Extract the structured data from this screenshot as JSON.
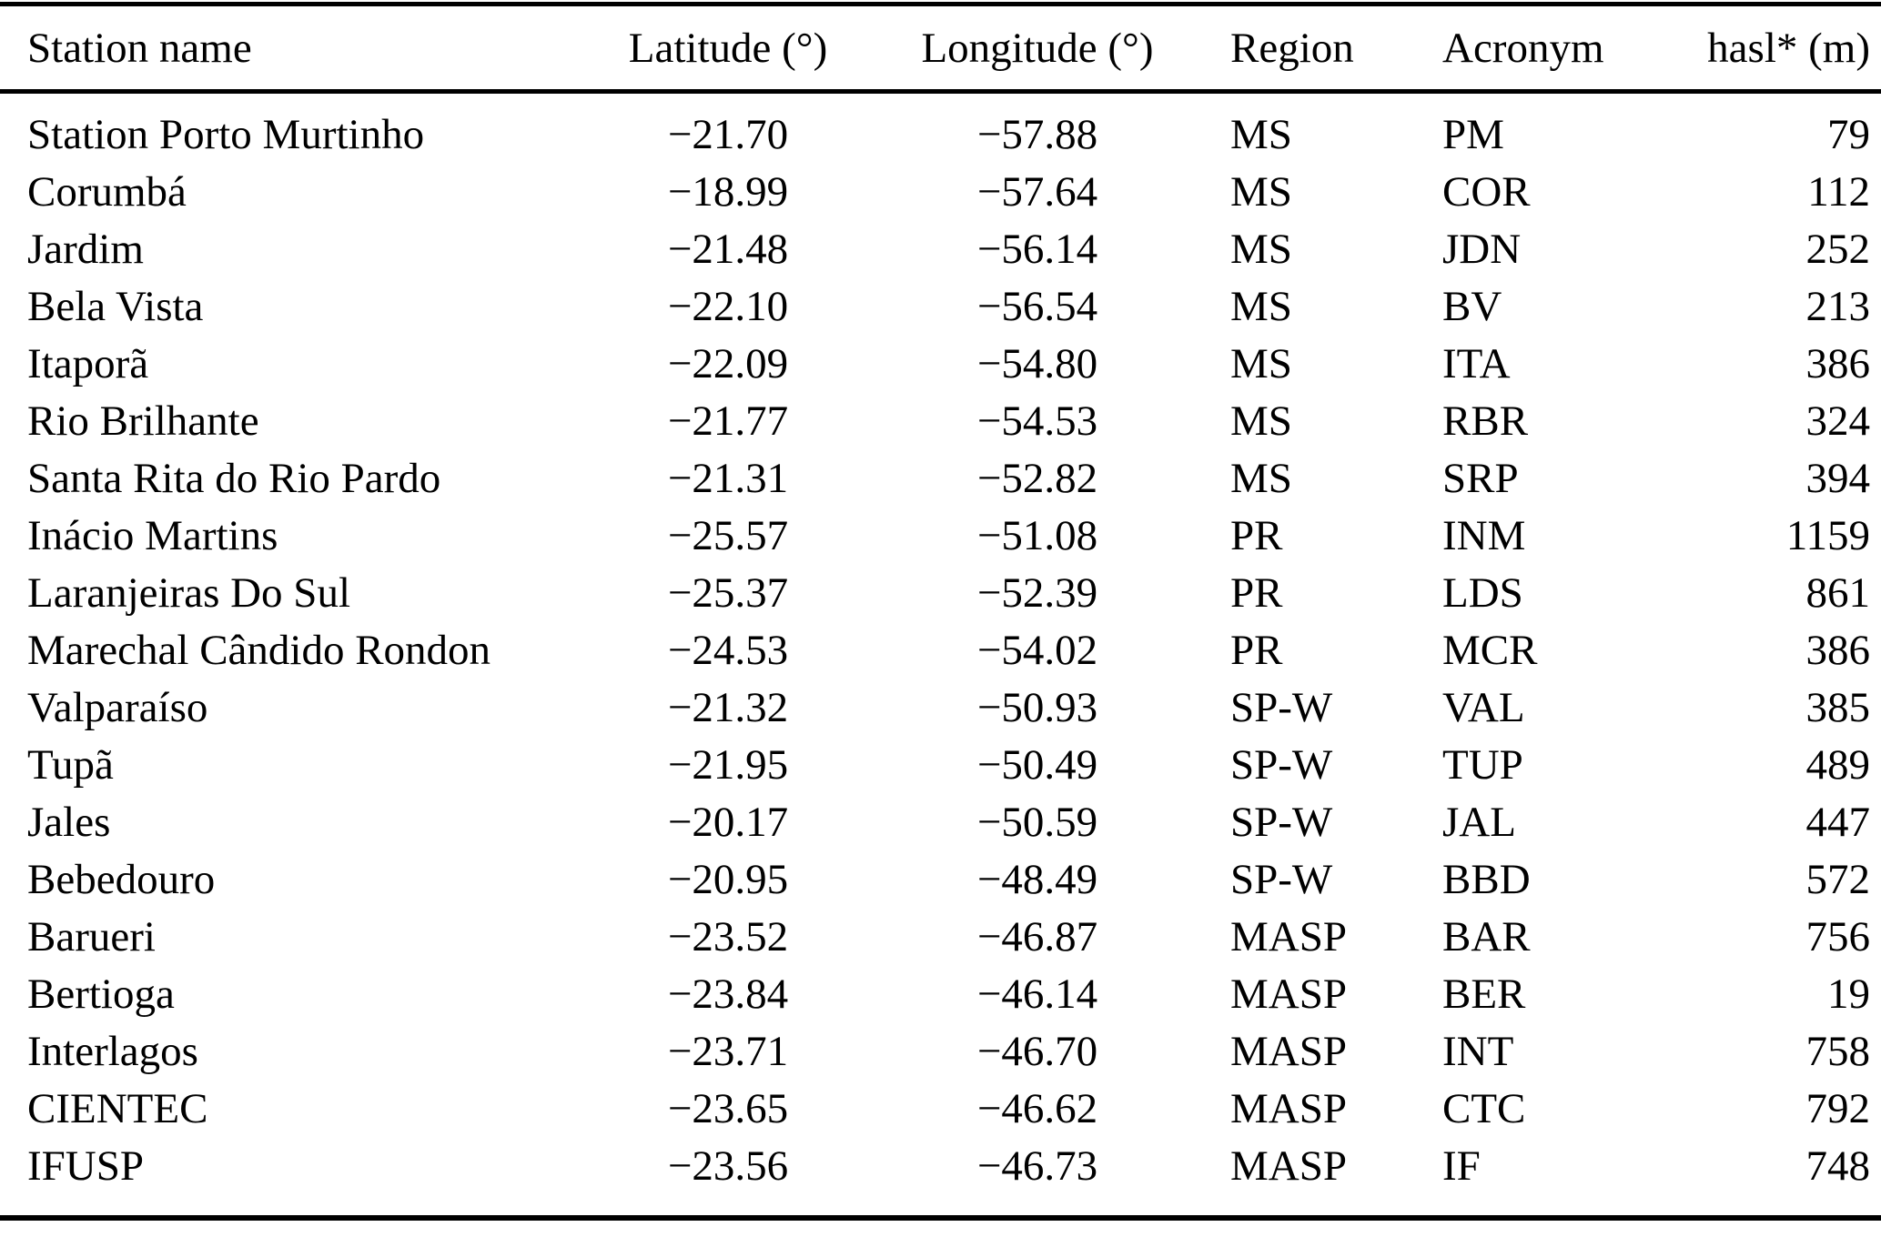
{
  "table": {
    "columns": [
      {
        "key": "station-name",
        "label": "Station name"
      },
      {
        "key": "latitude",
        "label": "Latitude (°)"
      },
      {
        "key": "longitude",
        "label": "Longitude (°)"
      },
      {
        "key": "region",
        "label": "Region"
      },
      {
        "key": "acronym",
        "label": "Acronym"
      },
      {
        "key": "hasl",
        "label": "hasl* (m)"
      }
    ],
    "rows": [
      [
        "Station Porto Murtinho",
        "−21.70",
        "−57.88",
        "MS",
        "PM",
        "79"
      ],
      [
        "Corumbá",
        "−18.99",
        "−57.64",
        "MS",
        "COR",
        "112"
      ],
      [
        "Jardim",
        "−21.48",
        "−56.14",
        "MS",
        "JDN",
        "252"
      ],
      [
        "Bela Vista",
        "−22.10",
        "−56.54",
        "MS",
        "BV",
        "213"
      ],
      [
        "Itaporã",
        "−22.09",
        "−54.80",
        "MS",
        "ITA",
        "386"
      ],
      [
        "Rio Brilhante",
        "−21.77",
        "−54.53",
        "MS",
        "RBR",
        "324"
      ],
      [
        "Santa Rita do Rio Pardo",
        "−21.31",
        "−52.82",
        "MS",
        "SRP",
        "394"
      ],
      [
        "Inácio Martins",
        "−25.57",
        "−51.08",
        "PR",
        "INM",
        "1159"
      ],
      [
        "Laranjeiras Do Sul",
        "−25.37",
        "−52.39",
        "PR",
        "LDS",
        "861"
      ],
      [
        "Marechal Cândido Rondon",
        "−24.53",
        "−54.02",
        "PR",
        "MCR",
        "386"
      ],
      [
        "Valparaíso",
        "−21.32",
        "−50.93",
        "SP-W",
        "VAL",
        "385"
      ],
      [
        "Tupã",
        "−21.95",
        "−50.49",
        "SP-W",
        "TUP",
        "489"
      ],
      [
        "Jales",
        "−20.17",
        "−50.59",
        "SP-W",
        "JAL",
        "447"
      ],
      [
        "Bebedouro",
        "−20.95",
        "−48.49",
        "SP-W",
        "BBD",
        "572"
      ],
      [
        "Barueri",
        "−23.52",
        "−46.87",
        "MASP",
        "BAR",
        "756"
      ],
      [
        "Bertioga",
        "−23.84",
        "−46.14",
        "MASP",
        "BER",
        "19"
      ],
      [
        "Interlagos",
        "−23.71",
        "−46.70",
        "MASP",
        "INT",
        "758"
      ],
      [
        "CIENTEC",
        "−23.65",
        "−46.62",
        "MASP",
        "CTC",
        "792"
      ],
      [
        "IFUSP",
        "−23.56",
        "−46.73",
        "MASP",
        "IF",
        "748"
      ]
    ]
  }
}
